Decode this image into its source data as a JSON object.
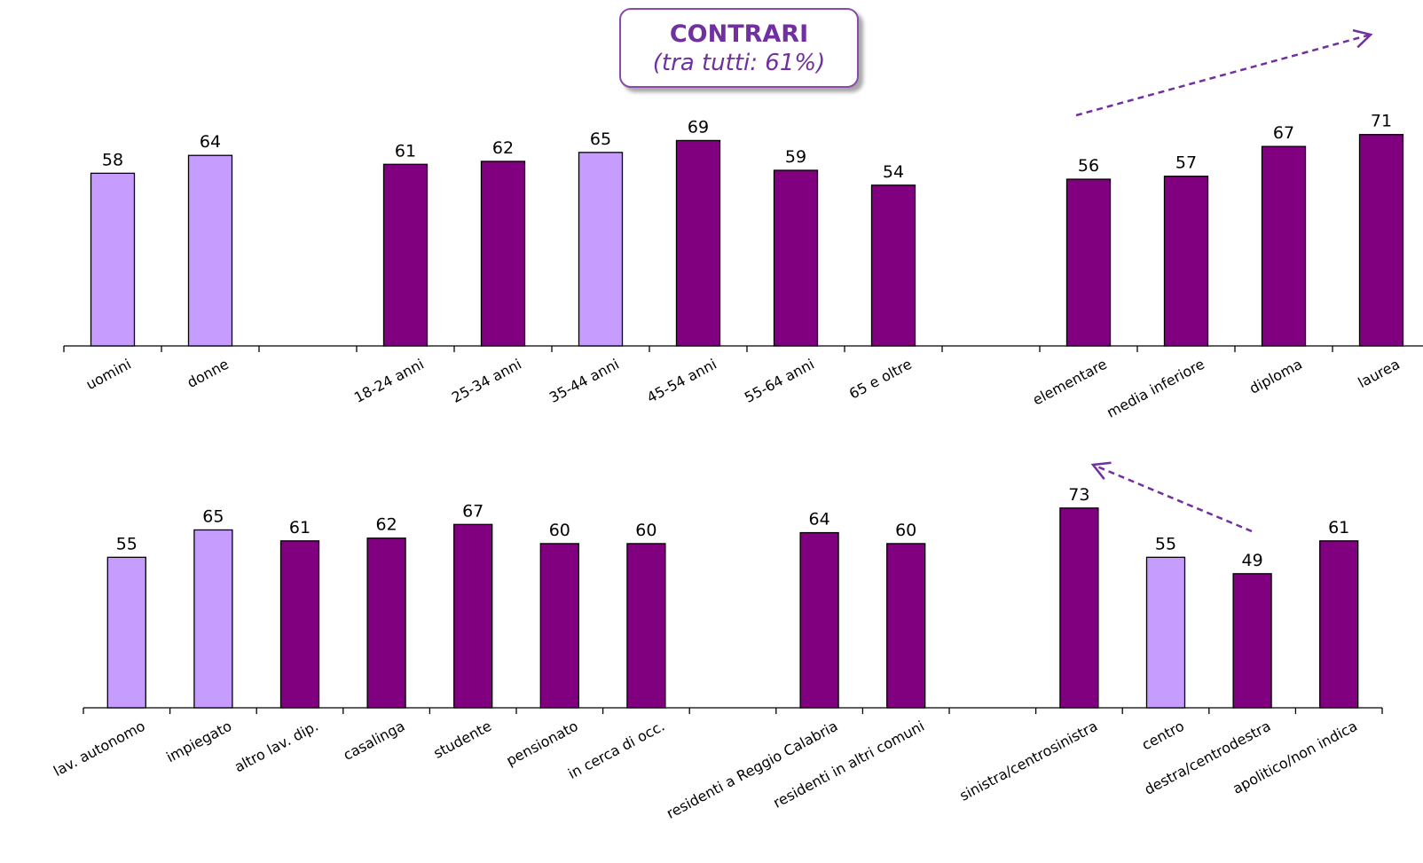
{
  "title": {
    "heading": "CONTRARI",
    "subtitle": "(tra tutti: 61%)"
  },
  "colors": {
    "light": "#c69cff",
    "dark": "#800080",
    "accent": "#7030a0"
  },
  "chart_data": [
    {
      "type": "bar",
      "ylim": [
        0,
        100
      ],
      "grid": false,
      "legend": "none",
      "categories": [
        "uomini",
        "donne",
        "",
        "18-24 anni",
        "25-34 anni",
        "35-44 anni",
        "45-54 anni",
        "55-64 anni",
        "65 e oltre",
        "",
        "elementare",
        "media inferiore",
        "diploma",
        "laurea"
      ],
      "values": [
        58,
        64,
        null,
        61,
        62,
        65,
        69,
        59,
        54,
        null,
        56,
        57,
        67,
        71
      ],
      "shades": [
        "light",
        "light",
        null,
        "dark",
        "dark",
        "light",
        "dark",
        "dark",
        "dark",
        null,
        "dark",
        "dark",
        "dark",
        "dark"
      ]
    },
    {
      "type": "bar",
      "ylim": [
        0,
        100
      ],
      "grid": false,
      "legend": "none",
      "categories": [
        "lav. autonomo",
        "impiegato",
        "altro lav. dip.",
        "casalinga",
        "studente",
        "pensionato",
        "in cerca di occ.",
        "",
        "residenti a Reggio Calabria",
        "residenti in altri comuni",
        "",
        "sinistra/centrosinistra",
        "centro",
        "destra/centrodestra",
        "apolitico/non indica"
      ],
      "values": [
        55,
        65,
        61,
        62,
        67,
        60,
        60,
        null,
        64,
        60,
        null,
        73,
        55,
        49,
        61
      ],
      "shades": [
        "light",
        "light",
        "dark",
        "dark",
        "dark",
        "dark",
        "dark",
        null,
        "dark",
        "dark",
        null,
        "dark",
        "light",
        "dark",
        "dark"
      ]
    }
  ]
}
